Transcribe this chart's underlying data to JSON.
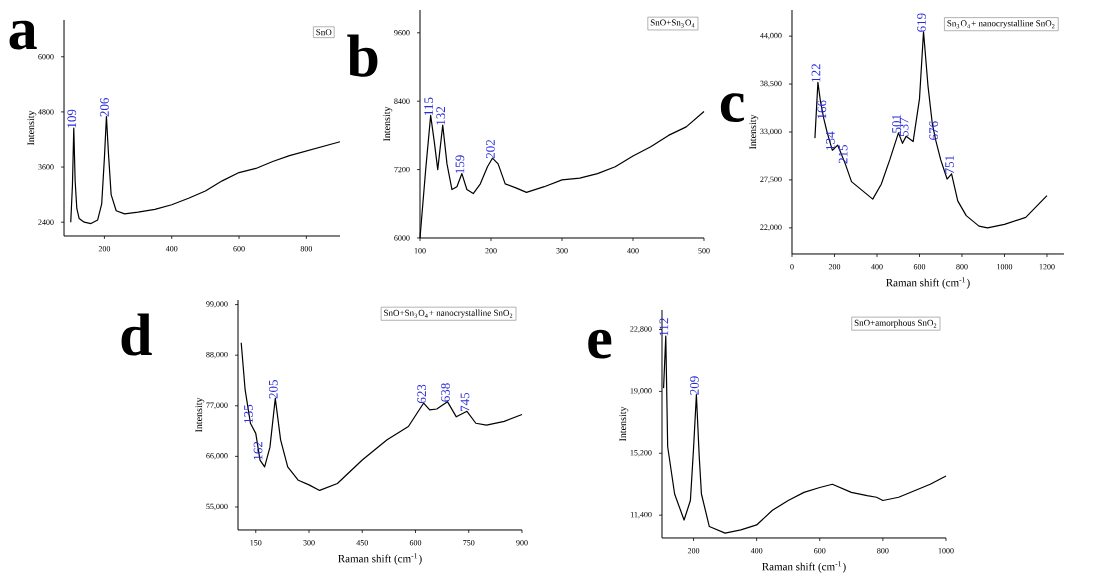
{
  "chart_data": [
    {
      "type": "line",
      "title": "a",
      "subtitle": "SnO",
      "ylabel": "Intensity",
      "xlim": [
        80,
        900
      ],
      "ylim": [
        2100,
        6800
      ],
      "xticks": [
        200,
        400,
        600,
        800
      ],
      "yticks": [
        2400,
        3600,
        4800,
        6000
      ],
      "series": [
        {
          "color": "#000000",
          "x": [
            100,
            105,
            109,
            113,
            118,
            125,
            140,
            160,
            180,
            192,
            200,
            206,
            212,
            220,
            235,
            260,
            300,
            350,
            400,
            450,
            500,
            550,
            600,
            650,
            700,
            750,
            800,
            850,
            900
          ],
          "values": [
            2400,
            3200,
            4450,
            3300,
            2700,
            2480,
            2400,
            2370,
            2450,
            2800,
            3800,
            4700,
            3900,
            3000,
            2650,
            2580,
            2620,
            2680,
            2780,
            2920,
            3080,
            3300,
            3480,
            3570,
            3720,
            3850,
            3950,
            4050,
            4150
          ]
        }
      ],
      "annotations": [
        {
          "text": "109",
          "x": 109,
          "y": 4450
        },
        {
          "text": "206",
          "x": 206,
          "y": 4700
        }
      ]
    },
    {
      "type": "line",
      "title": "b",
      "subtitle": "SnO+Sn$_{3}$O$_{4}$",
      "ylabel": "Intensity",
      "xlim": [
        100,
        500
      ],
      "ylim": [
        6000,
        10000
      ],
      "xticks": [
        100,
        200,
        300,
        400,
        500
      ],
      "yticks": [
        6000,
        7200,
        8400,
        9600
      ],
      "series": [
        {
          "color": "#000000",
          "x": [
            100,
            108,
            115,
            120,
            125,
            132,
            138,
            145,
            152,
            159,
            166,
            175,
            185,
            195,
            202,
            210,
            220,
            235,
            250,
            275,
            300,
            325,
            350,
            375,
            400,
            425,
            450,
            475,
            500
          ],
          "values": [
            6000,
            7200,
            8150,
            7700,
            7200,
            7980,
            7300,
            6850,
            6900,
            7130,
            6850,
            6780,
            6950,
            7250,
            7400,
            7300,
            6950,
            6880,
            6800,
            6900,
            7020,
            7050,
            7130,
            7250,
            7440,
            7600,
            7800,
            7950,
            8220
          ]
        }
      ],
      "annotations": [
        {
          "text": "115",
          "x": 115,
          "y": 8150
        },
        {
          "text": "132",
          "x": 132,
          "y": 7980
        },
        {
          "text": "159",
          "x": 159,
          "y": 7130
        },
        {
          "text": "202",
          "x": 202,
          "y": 7400
        }
      ]
    },
    {
      "type": "line",
      "subtitle": "Sn$_{3}$O$_{4}$+ nanocrystalline SnO$_{2}$",
      "title": "c",
      "xlabel": "Raman shift (cm$^{-1}$)",
      "ylabel": "Intensity",
      "xlim": [
        0,
        1280
      ],
      "ylim": [
        19000,
        47000
      ],
      "xticks": [
        0,
        200,
        400,
        600,
        800,
        1000,
        1200
      ],
      "yticks": [
        {
          "value": 22000,
          "label": "22,000"
        },
        {
          "value": 27500,
          "label": "27,500"
        },
        {
          "value": 33000,
          "label": "33,000"
        },
        {
          "value": 38500,
          "label": "38,500"
        },
        {
          "value": 44000,
          "label": "44,000"
        }
      ],
      "series": [
        {
          "color": "#000000",
          "x": [
            108,
            122,
            134,
            150,
            166,
            190,
            215,
            250,
            280,
            320,
            350,
            380,
            420,
            460,
            501,
            520,
            537,
            570,
            600,
            619,
            640,
            660,
            676,
            700,
            730,
            751,
            780,
            820,
            880,
            920,
            1000,
            1100,
            1200
          ],
          "values": [
            32300,
            38700,
            36500,
            34500,
            32900,
            30900,
            31500,
            29400,
            27300,
            26500,
            25900,
            25300,
            27000,
            29800,
            32900,
            31700,
            32500,
            31900,
            36800,
            44500,
            38300,
            34000,
            32100,
            29800,
            27600,
            28200,
            25100,
            23400,
            22200,
            22000,
            22400,
            23200,
            25700
          ]
        }
      ],
      "annotations": [
        {
          "text": "122",
          "x": 122,
          "y": 38700
        },
        {
          "text": "166",
          "x": 150,
          "y": 34500
        },
        {
          "text": "134",
          "x": 190,
          "y": 30900
        },
        {
          "text": "215",
          "x": 250,
          "y": 29400
        },
        {
          "text": "501",
          "x": 501,
          "y": 32900
        },
        {
          "text": "537",
          "x": 537,
          "y": 32500
        },
        {
          "text": "619",
          "x": 619,
          "y": 44500
        },
        {
          "text": "676",
          "x": 676,
          "y": 32100
        },
        {
          "text": "751",
          "x": 751,
          "y": 28200
        }
      ]
    },
    {
      "type": "line",
      "title": "d",
      "subtitle": "SnO+Sn$_{3}$O$_{4}$+ nanocrystalline SnO$_{2}$",
      "xlabel": "Raman shift (cm$^{-1}$)",
      "ylabel": "Intensity",
      "xlim": [
        100,
        900
      ],
      "ylim": [
        50000,
        100000
      ],
      "xticks": [
        150,
        300,
        450,
        600,
        750,
        900
      ],
      "yticks": [
        {
          "value": 55000,
          "label": "55,000"
        },
        {
          "value": 66000,
          "label": "66,000"
        },
        {
          "value": 77000,
          "label": "77,000"
        },
        {
          "value": 88000,
          "label": "88,000"
        },
        {
          "value": 99000,
          "label": "99,000"
        }
      ],
      "series": [
        {
          "color": "#000000",
          "x": [
            109,
            120,
            135,
            150,
            162,
            175,
            190,
            205,
            220,
            240,
            270,
            300,
            330,
            380,
            450,
            520,
            580,
            623,
            640,
            660,
            690,
            715,
            745,
            770,
            800,
            850,
            900
          ],
          "values": [
            90700,
            80500,
            73200,
            71000,
            65200,
            63700,
            68000,
            78600,
            69600,
            63700,
            60800,
            59800,
            58600,
            60100,
            65200,
            69600,
            72500,
            77600,
            76100,
            76300,
            77900,
            74600,
            75800,
            73200,
            72800,
            73600,
            75100
          ]
        }
      ],
      "annotations": [
        {
          "text": "135",
          "x": 135,
          "y": 73200
        },
        {
          "text": "162",
          "x": 162,
          "y": 65200
        },
        {
          "text": "205",
          "x": 205,
          "y": 78600
        },
        {
          "text": "623",
          "x": 623,
          "y": 77600
        },
        {
          "text": "638",
          "x": 690,
          "y": 77900
        },
        {
          "text": "745",
          "x": 745,
          "y": 75800
        }
      ]
    },
    {
      "type": "line",
      "title": "e",
      "subtitle": "SnO+amorphous SnO$_{2}$",
      "xlabel": "Raman shift (cm$^{-1}$)",
      "ylabel": "Intensity",
      "xlim": [
        100,
        1000
      ],
      "ylim": [
        10000,
        24000
      ],
      "xticks": [
        200,
        400,
        600,
        800,
        1000
      ],
      "yticks": [
        {
          "value": 11400,
          "label": "11,400"
        },
        {
          "value": 15200,
          "label": "15,200"
        },
        {
          "value": 19000,
          "label": "19,000"
        },
        {
          "value": 22800,
          "label": "22,800"
        }
      ],
      "series": [
        {
          "color": "#000000",
          "x": [
            105,
            112,
            118,
            140,
            170,
            190,
            200,
            209,
            218,
            225,
            250,
            300,
            350,
            400,
            450,
            500,
            550,
            600,
            640,
            700,
            750,
            780,
            800,
            850,
            900,
            950,
            1000
          ],
          "values": [
            19200,
            22400,
            15600,
            12700,
            11100,
            12300,
            15500,
            18800,
            15000,
            12700,
            10700,
            10300,
            10500,
            10800,
            11700,
            12300,
            12800,
            13100,
            13300,
            12800,
            12600,
            12500,
            12300,
            12500,
            12900,
            13300,
            13800
          ]
        }
      ],
      "annotations": [
        {
          "text": "112",
          "x": 112,
          "y": 22400
        },
        {
          "text": "209",
          "x": 209,
          "y": 18800
        }
      ]
    }
  ]
}
